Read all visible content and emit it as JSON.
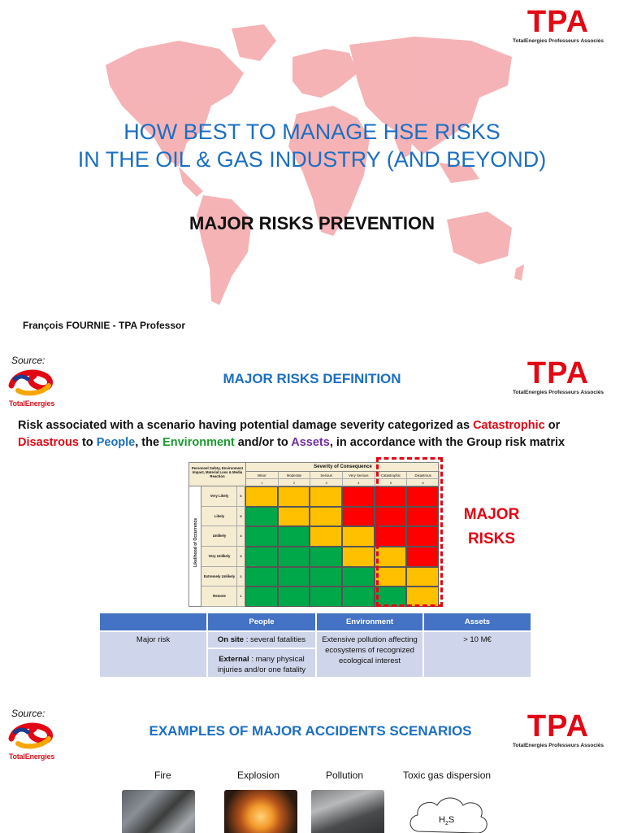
{
  "slide1": {
    "title_line1": "HOW BEST TO MANAGE HSE RISKS",
    "title_line2": "IN THE OIL & GAS INDUSTRY (AND BEYOND)",
    "subtitle": "MAJOR RISKS PREVENTION",
    "author": "François FOURNIE - TPA Professor",
    "map_color": "#f4a6aa"
  },
  "tpa_logo": {
    "mark": "TPA",
    "tagline": "TotalEnergies Professeurs Associés",
    "color": "#e30613"
  },
  "te_logo": {
    "source_label": "Source:",
    "name": "TotalEnergies"
  },
  "slide2": {
    "heading": "MAJOR RISKS DEFINITION",
    "definition": {
      "part1": "Risk associated with a scenario having potential damage severity categorized as ",
      "catastrophic": "Catastrophic",
      "or": " or ",
      "disastrous": "Disastrous",
      "to": " to ",
      "people": "People",
      "comma_the": ", the ",
      "environment": "Environment",
      "andor": " and/or to ",
      "assets": "Assets",
      "tail": ", in accordance with the Group risk matrix"
    },
    "matrix": {
      "corner_label": "Personnel Safety, Environment Impact, Material Loss & Media Reaction",
      "severity_title": "Severity of Consequence",
      "severity_levels": [
        {
          "name": "Minor",
          "num": "1"
        },
        {
          "name": "Moderate",
          "num": "2"
        },
        {
          "name": "Serious",
          "num": "3"
        },
        {
          "name": "Very Serious",
          "num": "4"
        },
        {
          "name": "Catastrophic",
          "num": "5"
        },
        {
          "name": "Disastrous",
          "num": "6"
        }
      ],
      "likelihood_title": "Likelihood of Occurrence",
      "likelihood_levels": [
        {
          "name": "Very Likely",
          "num": "6"
        },
        {
          "name": "Likely",
          "num": "5"
        },
        {
          "name": "Unlikely",
          "num": "4"
        },
        {
          "name": "Very Unlikely",
          "num": "3"
        },
        {
          "name": "Extremely Unlikely",
          "num": "2"
        },
        {
          "name": "Remote",
          "num": "1"
        }
      ],
      "cells": [
        [
          "y",
          "y",
          "y",
          "r",
          "r",
          "r"
        ],
        [
          "g",
          "y",
          "y",
          "r",
          "r",
          "r"
        ],
        [
          "g",
          "g",
          "y",
          "y",
          "r",
          "r"
        ],
        [
          "g",
          "g",
          "g",
          "y",
          "y",
          "r"
        ],
        [
          "g",
          "g",
          "g",
          "g",
          "y",
          "y"
        ],
        [
          "g",
          "g",
          "g",
          "g",
          "g",
          "y"
        ]
      ],
      "colors": {
        "g": "#00a849",
        "y": "#ffc000",
        "r": "#ff0000"
      }
    },
    "major_label_line1": "MAJOR",
    "major_label_line2": "RISKS",
    "risk_table": {
      "headers": [
        "",
        "People",
        "Environment",
        "Assets"
      ],
      "row_label": "Major risk",
      "people_onsite_bold": "On site",
      "people_onsite_rest": " : several fatalities",
      "people_external_bold": "External",
      "people_external_rest": " : many physical injuries and/or one fatality",
      "environment": "Extensive pollution affecting ecosystems of recognized ecological interest",
      "assets": "> 10 M€"
    }
  },
  "slide3": {
    "heading": "EXAMPLES OF MAJOR ACCIDENTS SCENARIOS",
    "examples": [
      "Fire",
      "Explosion",
      "Pollution",
      "Toxic gas dispersion"
    ],
    "gas_main": "H",
    "gas_sub": "2",
    "gas_tail": "S"
  }
}
